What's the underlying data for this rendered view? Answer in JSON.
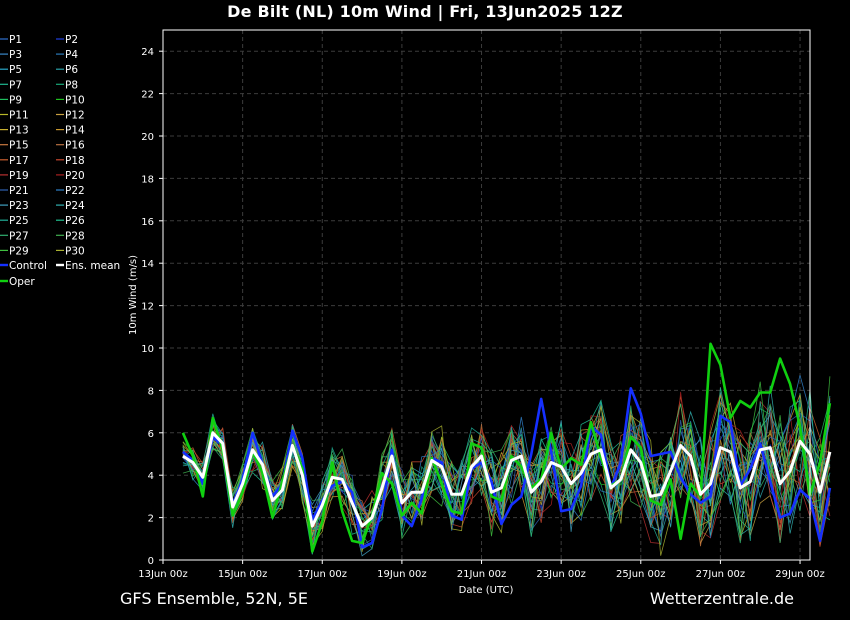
{
  "title": "De Bilt  (NL)  10m Wind | Fri, 13Jun2025 12Z",
  "footer": {
    "left": "GFS Ensemble, 52N, 5E",
    "right": "Wetterzentrale.de"
  },
  "colors": {
    "background": "#000000",
    "axes": "#ffffff",
    "grid": "#3c3c3c",
    "control": "#1530ff",
    "oper": "#10d010",
    "mean": "#ffffff"
  },
  "legend": {
    "members": [
      "P1",
      "P2",
      "P3",
      "P4",
      "P5",
      "P6",
      "P7",
      "P8",
      "P9",
      "P10",
      "P11",
      "P12",
      "P13",
      "P14",
      "P15",
      "P16",
      "P17",
      "P18",
      "P19",
      "P20",
      "P21",
      "P22",
      "P23",
      "P24",
      "P25",
      "P26",
      "P27",
      "P28",
      "P29",
      "P30"
    ],
    "member_colors": [
      "#3070d0",
      "#2040e0",
      "#3a88c8",
      "#2a78b8",
      "#2aa8c8",
      "#2aa0a8",
      "#20b890",
      "#18a878",
      "#20c060",
      "#20c020",
      "#b8b828",
      "#c8a040",
      "#c8b030",
      "#c89830",
      "#c87840",
      "#b87040",
      "#c86030",
      "#c84830",
      "#b83030",
      "#a82020",
      "#3060b0",
      "#3080c8",
      "#40a0c0",
      "#30b0b0",
      "#20b098",
      "#20c090",
      "#30b070",
      "#40b050",
      "#40c040",
      "#a8b030"
    ],
    "control": "Control",
    "mean": "Ens. mean",
    "oper": "Oper"
  },
  "chart_data": {
    "type": "line",
    "title": "De Bilt  (NL)  10m Wind | Fri, 13Jun2025 12Z",
    "xlabel": "Date (UTC)",
    "ylabel": "10m Wind (m/s)",
    "ylim": [
      0,
      25
    ],
    "yticks": [
      0,
      2,
      4,
      6,
      8,
      10,
      12,
      14,
      16,
      18,
      20,
      22,
      24
    ],
    "xlim": [
      "13Jun 00z",
      "29Jun 06z"
    ],
    "xticks": [
      "13Jun 00z",
      "15Jun 00z",
      "17Jun 00z",
      "19Jun 00z",
      "21Jun 00z",
      "23Jun 00z",
      "25Jun 00z",
      "27Jun 00z",
      "29Jun 00z"
    ],
    "x_start": "13Jun 12z",
    "x_step": "6h",
    "grid": true,
    "legend_position": "outside-left",
    "series": [
      {
        "name": "Control",
        "values": [
          5.1,
          4.7,
          3.6,
          5.8,
          5.4,
          2.6,
          3.8,
          6.0,
          4.5,
          3.0,
          3.6,
          6.1,
          4.8,
          1.9,
          2.8,
          3.5,
          3.7,
          3.2,
          0.6,
          0.8,
          2.4,
          5.2,
          2.1,
          1.6,
          2.9,
          4.8,
          4.6,
          2.1,
          1.9,
          4.3,
          4.6,
          3.7,
          1.7,
          2.6,
          3.0,
          5.0,
          7.6,
          5.1,
          2.3,
          2.4,
          3.5,
          6.3,
          5.9,
          3.4,
          4.6,
          8.1,
          6.9,
          4.9,
          5.0,
          5.1,
          3.9,
          3.1,
          2.7,
          3.0,
          6.8,
          6.5,
          3.5,
          4.3,
          5.5,
          3.7,
          2.0,
          2.2,
          3.3,
          2.9,
          0.9,
          3.4
        ]
      },
      {
        "name": "Oper",
        "values": [
          6.0,
          4.9,
          3.0,
          6.7,
          5.2,
          2.1,
          3.2,
          5.1,
          4.1,
          2.0,
          3.7,
          5.4,
          4.3,
          0.4,
          1.8,
          4.6,
          2.3,
          0.9,
          0.8,
          2.1,
          4.1,
          3.6,
          2.1,
          2.7,
          2.2,
          4.8,
          3.6,
          2.3,
          2.2,
          5.5,
          5.3,
          3.0,
          2.8,
          4.9,
          4.4,
          3.4,
          3.8,
          6.0,
          4.3,
          4.8,
          4.5,
          6.5,
          4.8,
          3.5,
          3.8,
          5.8,
          5.3,
          2.8,
          2.6,
          3.8,
          1.0,
          3.6,
          3.0,
          10.2,
          9.2,
          6.7,
          7.5,
          7.2,
          7.9,
          7.9,
          9.5,
          8.3,
          6.3,
          3.1,
          4.6,
          7.4
        ]
      },
      {
        "name": "Ens. mean",
        "values": [
          4.9,
          4.6,
          3.9,
          6.0,
          5.5,
          2.5,
          3.6,
          5.2,
          4.5,
          2.8,
          3.3,
          5.4,
          4.0,
          1.6,
          2.6,
          3.9,
          3.8,
          2.7,
          1.6,
          2.0,
          3.4,
          4.9,
          2.7,
          3.2,
          3.2,
          4.7,
          4.4,
          3.1,
          3.1,
          4.4,
          4.9,
          3.2,
          3.4,
          4.7,
          4.9,
          3.2,
          3.7,
          4.6,
          4.4,
          3.6,
          4.1,
          5.0,
          5.2,
          3.4,
          3.8,
          5.2,
          4.6,
          3.0,
          3.1,
          4.2,
          5.4,
          4.9,
          3.1,
          3.6,
          5.3,
          5.1,
          3.4,
          3.7,
          5.2,
          5.3,
          3.6,
          4.2,
          5.6,
          5.0,
          3.2,
          5.1
        ]
      }
    ]
  }
}
